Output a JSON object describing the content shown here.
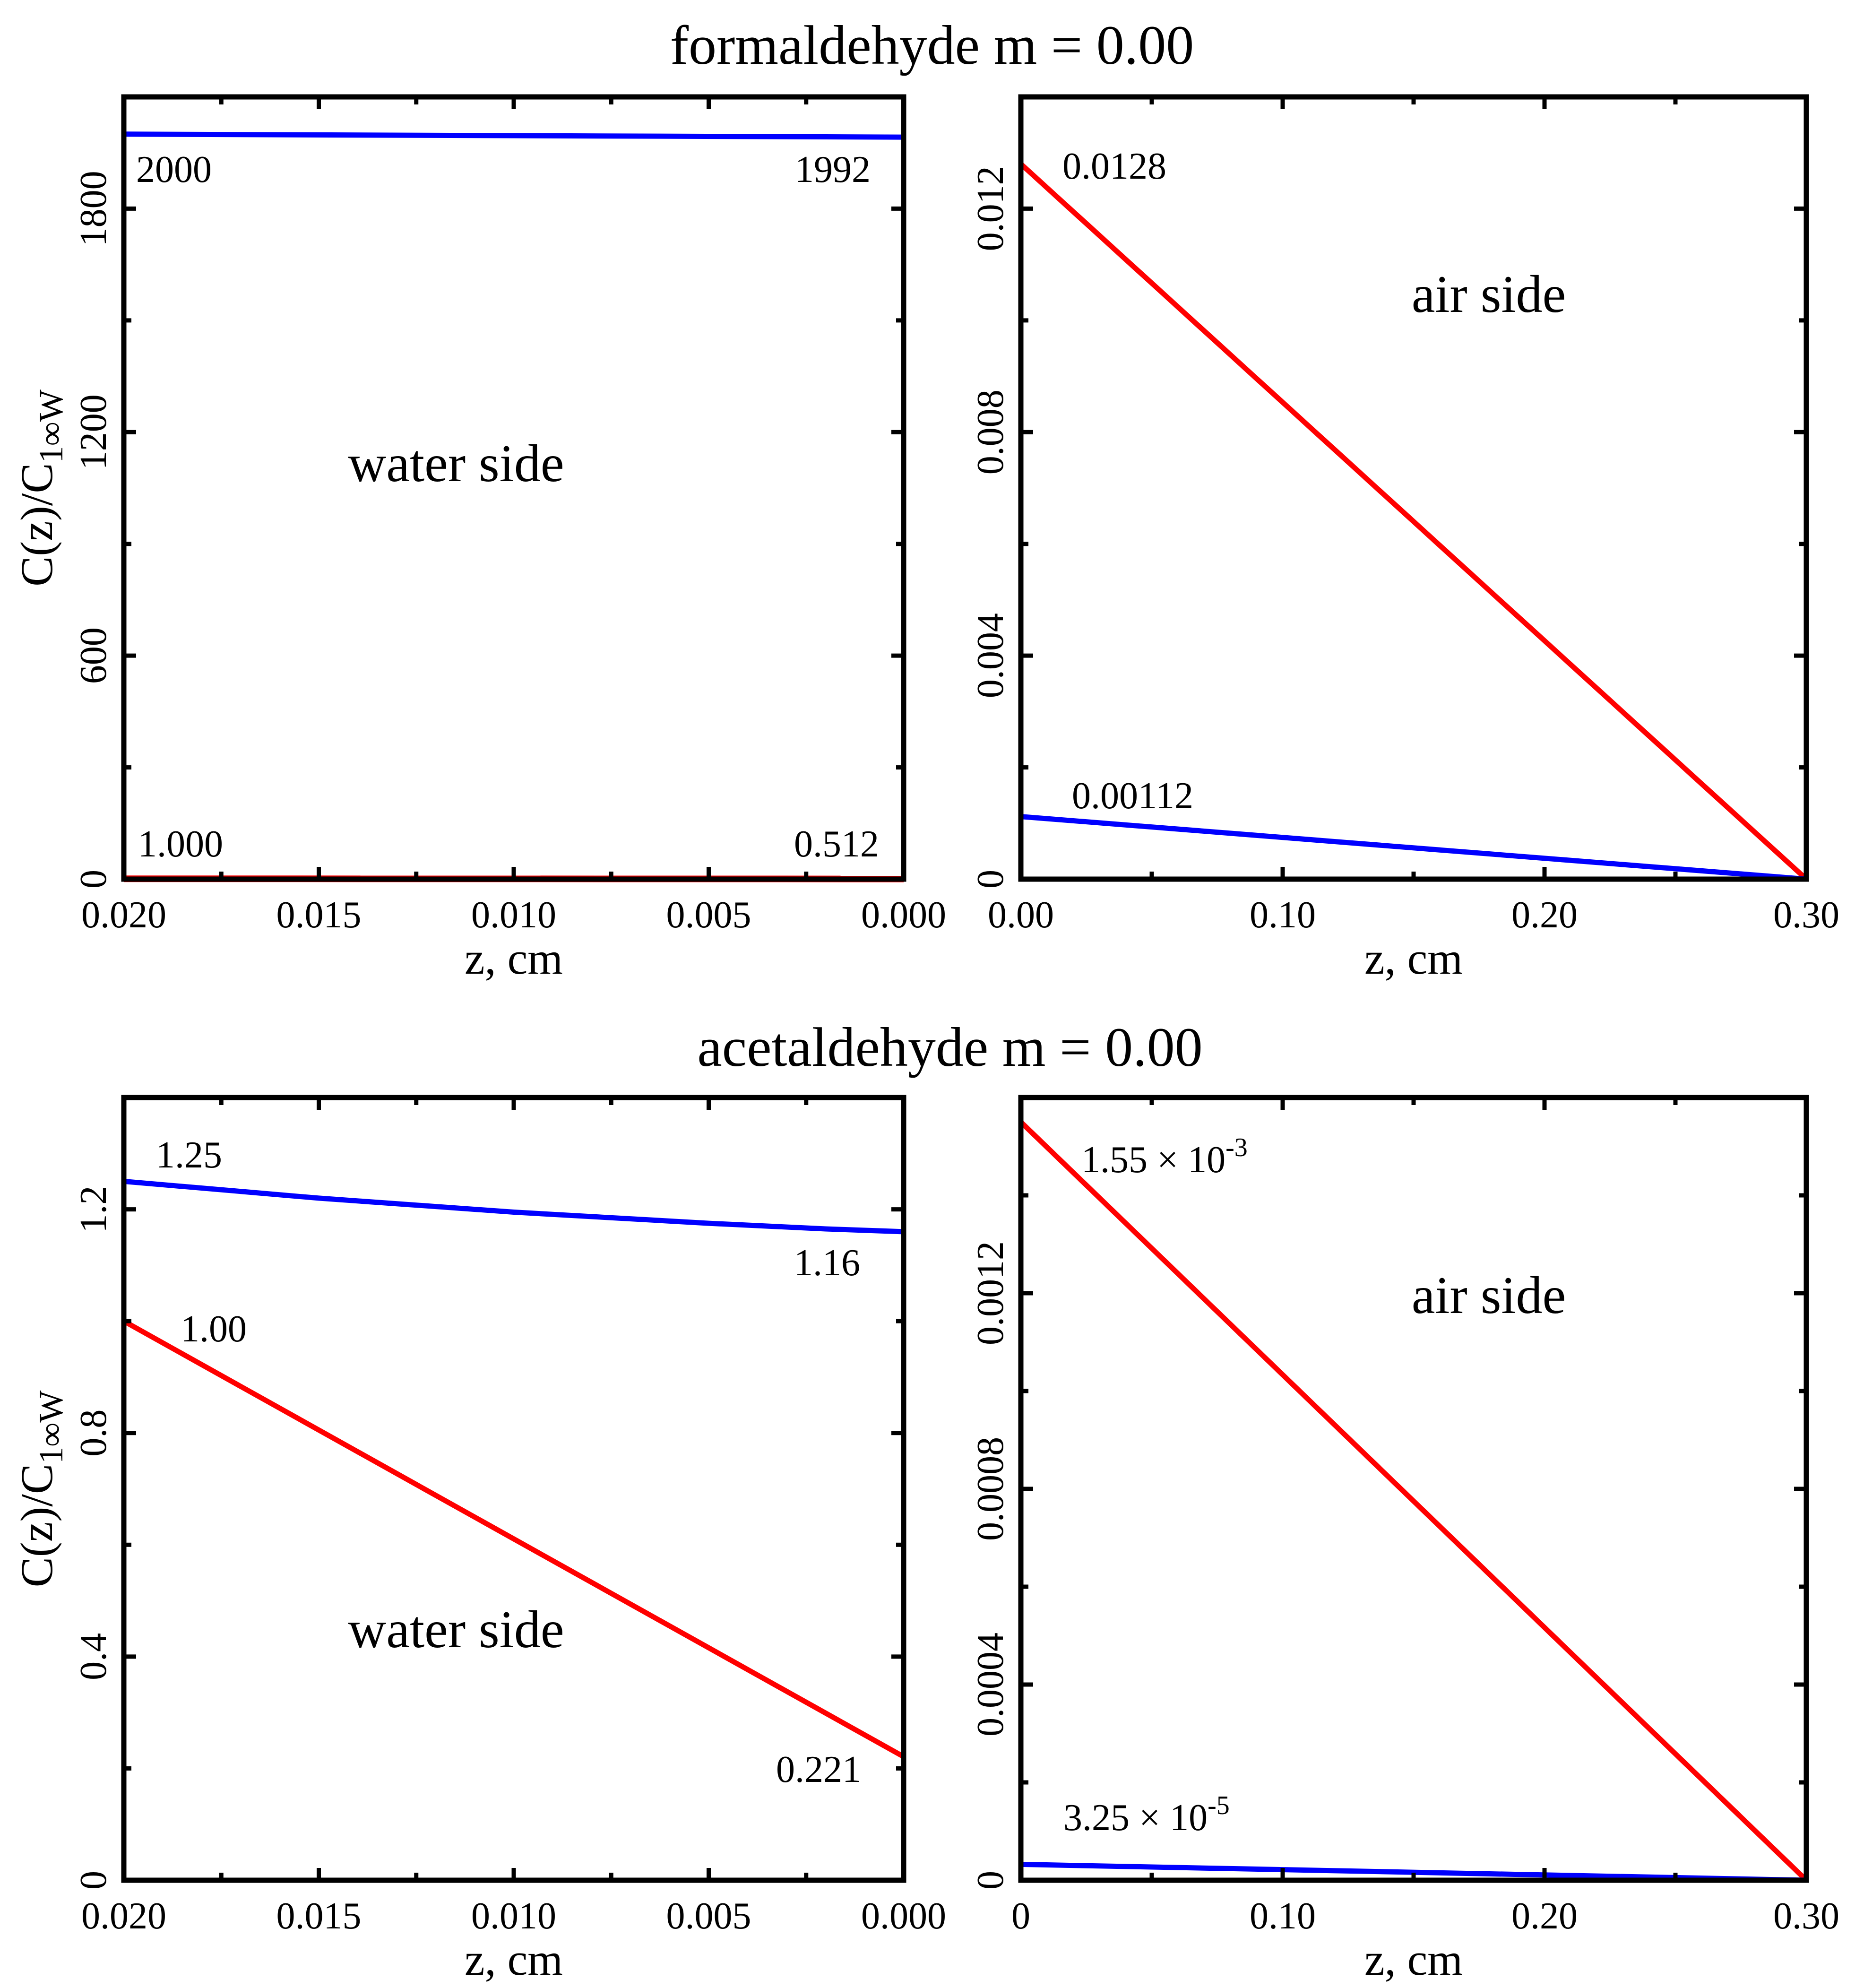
{
  "colors": {
    "blue": "#0000ff",
    "red": "#ff0000",
    "axis": "#000000"
  },
  "titles": [
    "formaldehyde m = 0.00",
    "acetaldehyde m = 0.00"
  ],
  "chart_data": [
    {
      "type": "line",
      "panel": "top-left",
      "ylabel": "C(z)/C",
      "ylabel_sub": "1∞W",
      "xlabel": "z, cm",
      "xlim": [
        0.02,
        0.0
      ],
      "ylim": [
        0,
        2100
      ],
      "xticks": [
        0.02,
        0.015,
        0.01,
        0.005,
        0.0
      ],
      "xtick_labels": [
        "0.020",
        "0.015",
        "0.010",
        "0.005",
        "0.000"
      ],
      "yticks": [
        0,
        600,
        1200,
        1800
      ],
      "ytick_labels": [
        "0",
        "600",
        "1200",
        "1800"
      ],
      "region_label": "water side",
      "series": [
        {
          "name": "blue",
          "color": "#0000ff",
          "x": [
            0.02,
            0.01,
            0.0
          ],
          "y": [
            2000,
            1996,
            1992
          ]
        },
        {
          "name": "red",
          "color": "#ff0000",
          "x": [
            0.02,
            0.0
          ],
          "y": [
            1.0,
            0.512
          ]
        }
      ],
      "annotations": [
        "2000",
        "1992",
        "1.000",
        "0.512"
      ]
    },
    {
      "type": "line",
      "panel": "top-right",
      "xlabel": "z, cm",
      "xlim": [
        0.0,
        0.3
      ],
      "ylim": [
        0,
        0.014
      ],
      "xticks": [
        0.0,
        0.1,
        0.2,
        0.3
      ],
      "xtick_labels": [
        "0.00",
        "0.10",
        "0.20",
        "0.30"
      ],
      "yticks": [
        0,
        0.004,
        0.008,
        0.012
      ],
      "ytick_labels": [
        "0",
        "0.004",
        "0.008",
        "0.012"
      ],
      "region_label": "air side",
      "series": [
        {
          "name": "red",
          "color": "#ff0000",
          "x": [
            0.0,
            0.3
          ],
          "y": [
            0.0128,
            0
          ]
        },
        {
          "name": "blue",
          "color": "#0000ff",
          "x": [
            0.0,
            0.3
          ],
          "y": [
            0.00112,
            0
          ]
        }
      ],
      "annotations": [
        "0.0128",
        "0.00112"
      ]
    },
    {
      "type": "line",
      "panel": "bottom-left",
      "ylabel": "C(z)/C",
      "ylabel_sub": "1∞W",
      "xlabel": "z, cm",
      "xlim": [
        0.02,
        0.0
      ],
      "ylim": [
        0,
        1.4
      ],
      "xticks": [
        0.02,
        0.015,
        0.01,
        0.005,
        0.0
      ],
      "xtick_labels": [
        "0.020",
        "0.015",
        "0.010",
        "0.005",
        "0.000"
      ],
      "yticks": [
        0,
        0.4,
        0.8,
        1.2
      ],
      "ytick_labels": [
        "0",
        "0.4",
        "0.8",
        "1.2"
      ],
      "region_label": "water side",
      "series": [
        {
          "name": "blue",
          "color": "#0000ff",
          "x": [
            0.02,
            0.015,
            0.01,
            0.005,
            0.002,
            0.0
          ],
          "y": [
            1.25,
            1.22,
            1.195,
            1.175,
            1.165,
            1.16
          ]
        },
        {
          "name": "red",
          "color": "#ff0000",
          "x": [
            0.02,
            0.0
          ],
          "y": [
            1.0,
            0.221
          ]
        }
      ],
      "annotations": [
        "1.25",
        "1.16",
        "1.00",
        "0.221"
      ]
    },
    {
      "type": "line",
      "panel": "bottom-right",
      "xlabel": "z, cm",
      "xlim": [
        0,
        0.3
      ],
      "ylim": [
        0,
        0.0016
      ],
      "xticks": [
        0,
        0.1,
        0.2,
        0.3
      ],
      "xtick_labels": [
        "0",
        "0.10",
        "0.20",
        "0.30"
      ],
      "yticks": [
        0,
        0.0004,
        0.0008,
        0.0012
      ],
      "ytick_labels": [
        "0",
        "0.0004",
        "0.0008",
        "0.0012"
      ],
      "region_label": "air side",
      "series": [
        {
          "name": "red",
          "color": "#ff0000",
          "x": [
            0,
            0.3
          ],
          "y": [
            0.00155,
            0
          ]
        },
        {
          "name": "blue",
          "color": "#0000ff",
          "x": [
            0,
            0.3
          ],
          "y": [
            3.25e-05,
            0
          ]
        }
      ],
      "annotations": [
        {
          "base": "1.55 × 10",
          "exp": "-3"
        },
        {
          "base": "3.25 × 10",
          "exp": "-5"
        }
      ]
    }
  ]
}
